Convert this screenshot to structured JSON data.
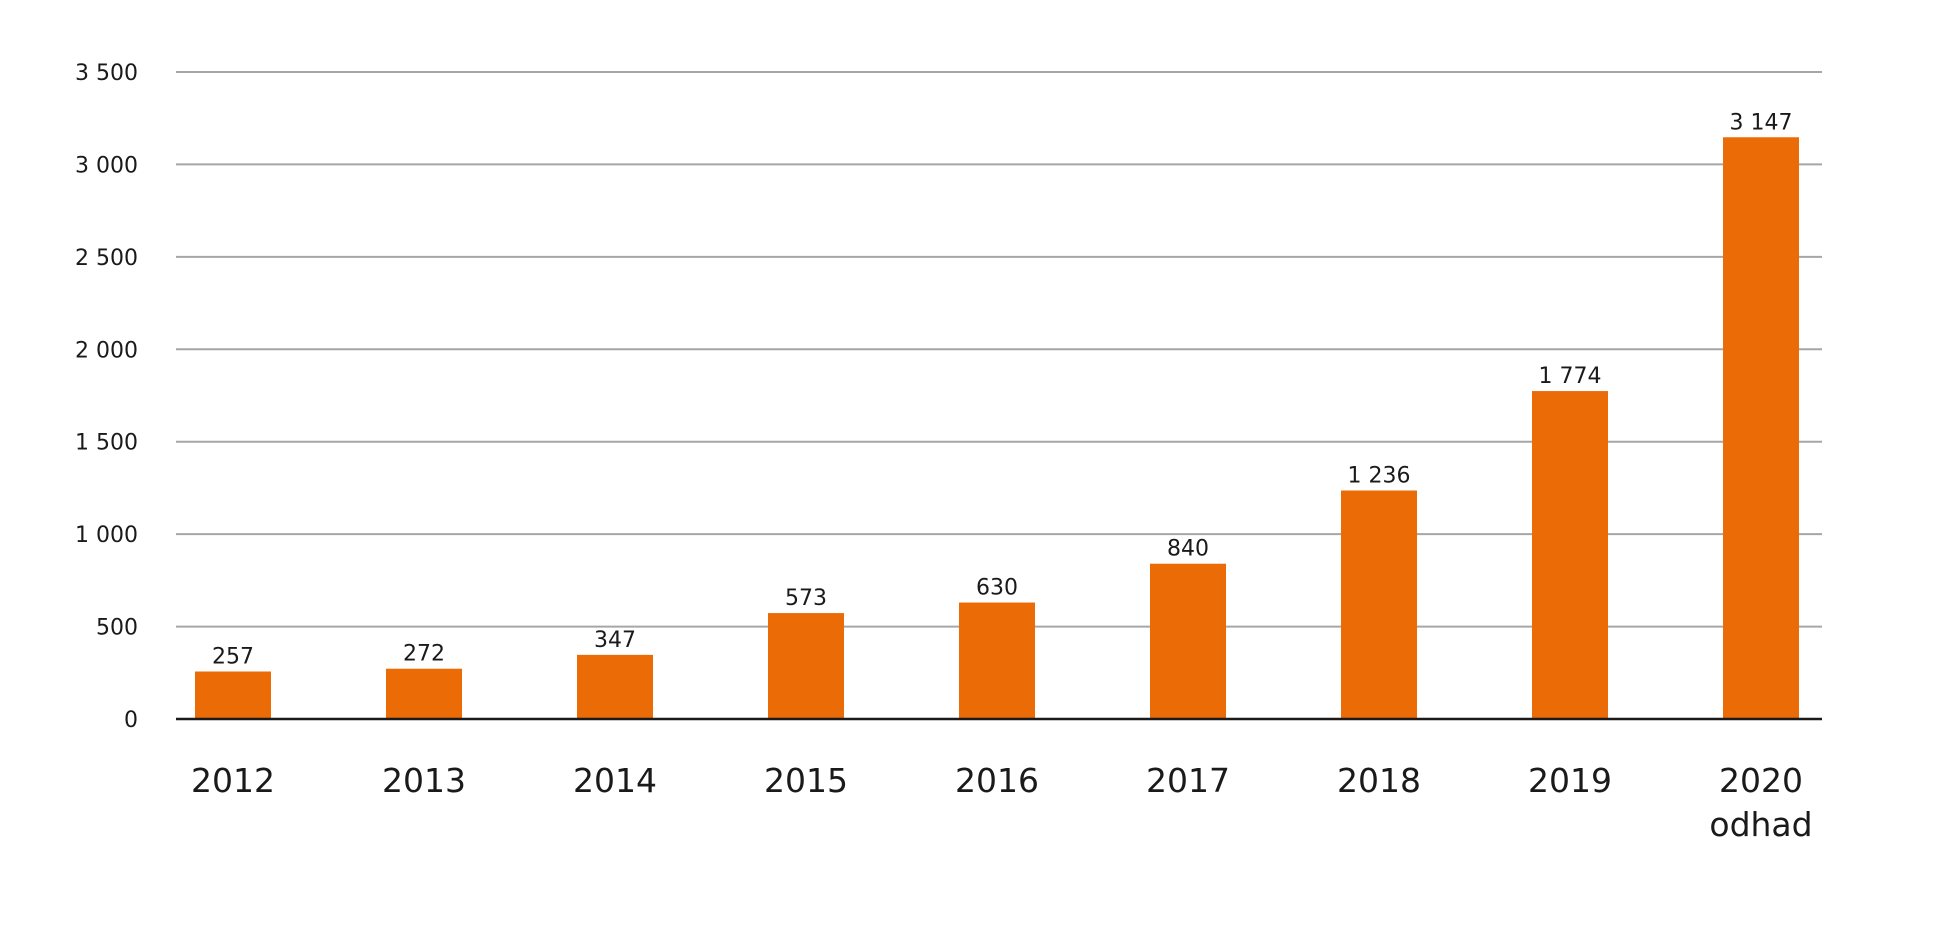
{
  "chart_data": {
    "type": "bar",
    "categories": [
      [
        "2012"
      ],
      [
        "2013"
      ],
      [
        "2014"
      ],
      [
        "2015"
      ],
      [
        "2016"
      ],
      [
        "2017"
      ],
      [
        "2018"
      ],
      [
        "2019"
      ],
      [
        "2020",
        "odhad"
      ]
    ],
    "values": [
      257,
      272,
      347,
      573,
      630,
      840,
      1236,
      1774,
      3147
    ],
    "value_labels": [
      "257",
      "272",
      "347",
      "573",
      "630",
      "840",
      "1 236",
      "1 774",
      "3 147"
    ],
    "y_ticks": [
      0,
      500,
      1000,
      1500,
      2000,
      2500,
      3000,
      3500
    ],
    "y_tick_labels": [
      "0",
      "500",
      "1 000",
      "1 500",
      "2 000",
      "2 500",
      "3 000",
      "3 500"
    ],
    "ylim": [
      0,
      3500
    ],
    "title": "",
    "xlabel": "",
    "ylabel": "",
    "grid": true,
    "legend": "none",
    "bar_color": "#eb6b07"
  }
}
